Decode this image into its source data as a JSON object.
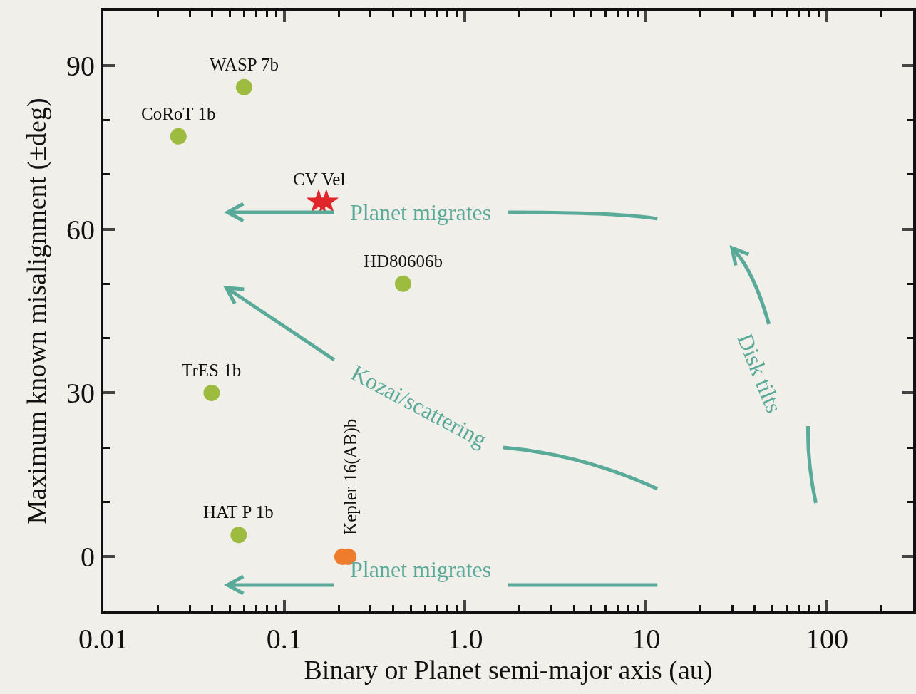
{
  "chart_data": {
    "type": "scatter",
    "xlabel": "Binary or Planet semi-major axis (au)",
    "ylabel": "Maximum known misalignment (±deg)",
    "log": "x",
    "xlim": [
      0.01,
      300
    ],
    "xticks": [
      0.01,
      0.1,
      {
        "value": 1,
        "label": "1.0"
      },
      10,
      100
    ],
    "ylim": [
      -10,
      100
    ],
    "yticks": [
      0,
      30,
      60,
      90
    ],
    "marker": "circle",
    "series": [
      {
        "color": "#9dbb3f",
        "x": [
          0.06,
          0.026,
          0.454,
          0.0397,
          0.056
        ],
        "values": [
          86,
          77,
          50,
          30,
          4
        ]
      },
      {
        "color": "#ef7b2c",
        "x": [
          0.21,
          0.226
        ],
        "values": [
          0,
          0
        ]
      },
      {
        "color": "#e0262a",
        "marker": "star",
        "x": [
          0.155,
          0.171
        ],
        "values": [
          65,
          65
        ]
      }
    ],
    "annotations": [
      {
        "text": "WASP 7b",
        "x": 0.06,
        "y": 86
      },
      {
        "text": "CoRoT 1b",
        "x": 0.026,
        "y": 77
      },
      {
        "text": "CV Vel",
        "x": 0.171,
        "y": 65
      },
      {
        "text": "HD80606b",
        "x": 0.454,
        "y": 50
      },
      {
        "text": "TrES 1b",
        "x": 0.0397,
        "y": 30
      },
      {
        "text": "HAT P 1b",
        "x": 0.056,
        "y": 4
      },
      {
        "text": "Kepler 16(AB)b",
        "x": 0.21,
        "y": 0
      },
      "Planet migrates",
      "Kozai/scattering",
      "Disk tilts",
      "Planet migrates"
    ]
  }
}
